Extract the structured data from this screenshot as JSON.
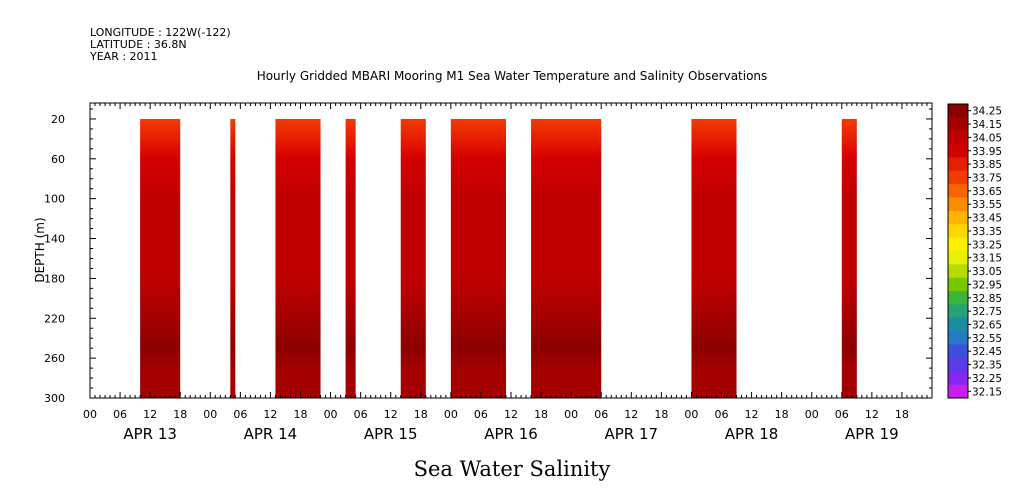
{
  "header": {
    "longitude": "LONGITUDE : 122W(-122)",
    "latitude": "LATITUDE : 36.8N",
    "year": "YEAR : 2011"
  },
  "chart_data": {
    "type": "heatmap",
    "title": "Hourly Gridded MBARI Mooring M1 Sea Water Temperature and Salinity Observations",
    "ylabel": "DEPTH (m)",
    "bottom_label": "Sea Water Salinity",
    "y_ticks": [
      20,
      60,
      100,
      140,
      180,
      220,
      260,
      300
    ],
    "ylim": [
      300,
      4
    ],
    "x_range_hours": [
      0,
      168
    ],
    "x_hour_labels": [
      "00",
      "06",
      "12",
      "18",
      "00",
      "06",
      "12",
      "18",
      "00",
      "06",
      "12",
      "18",
      "00",
      "06",
      "12",
      "18",
      "00",
      "06",
      "12",
      "18",
      "00",
      "06",
      "12",
      "18",
      "00",
      "06",
      "12",
      "18"
    ],
    "x_day_labels": [
      "APR 13",
      "APR 14",
      "APR 15",
      "APR 16",
      "APR 17",
      "APR 18",
      "APR 19"
    ],
    "data_depth_range": [
      20,
      300
    ],
    "data_blocks_hours": [
      [
        10,
        18
      ],
      [
        28,
        29
      ],
      [
        37,
        46
      ],
      [
        51,
        53
      ],
      [
        62,
        67
      ],
      [
        72,
        83
      ],
      [
        88,
        102
      ],
      [
        120,
        129
      ],
      [
        150,
        153
      ]
    ],
    "colorbar": {
      "labels": [
        "34.25",
        "34.15",
        "34.05",
        "33.95",
        "33.85",
        "33.75",
        "33.65",
        "33.55",
        "33.45",
        "33.35",
        "33.25",
        "33.15",
        "33.05",
        "32.95",
        "32.85",
        "32.75",
        "32.65",
        "32.55",
        "32.45",
        "32.35",
        "32.25",
        "32.15"
      ],
      "colors": [
        "#8b0000",
        "#a50000",
        "#be0000",
        "#d40000",
        "#e61e00",
        "#f03c00",
        "#f86400",
        "#ff8c00",
        "#ffb400",
        "#ffd700",
        "#fff000",
        "#e6f000",
        "#b4dc00",
        "#78c800",
        "#3cb43c",
        "#28a078",
        "#1e8ca0",
        "#2878c8",
        "#3c50dc",
        "#5a3ce6",
        "#8228f0",
        "#c81ef0"
      ]
    },
    "profile": [
      {
        "depth": 20,
        "value": 33.72
      },
      {
        "depth": 40,
        "value": 33.9
      },
      {
        "depth": 60,
        "value": 33.96
      },
      {
        "depth": 100,
        "value": 34.0
      },
      {
        "depth": 140,
        "value": 34.05
      },
      {
        "depth": 180,
        "value": 34.08
      },
      {
        "depth": 220,
        "value": 34.12
      },
      {
        "depth": 250,
        "value": 34.2
      },
      {
        "depth": 270,
        "value": 34.14
      },
      {
        "depth": 300,
        "value": 34.1
      }
    ]
  }
}
